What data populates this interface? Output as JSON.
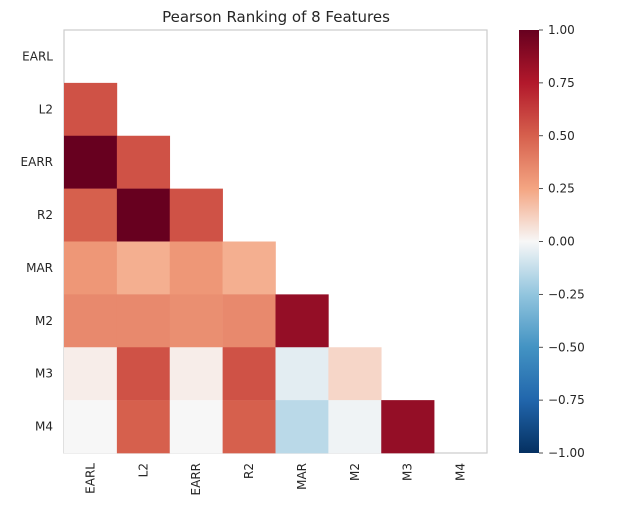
{
  "chart_data": {
    "type": "heatmap",
    "title": "Pearson Ranking of 8 Features",
    "features": [
      "EARL",
      "L2",
      "EARR",
      "R2",
      "MAR",
      "M2",
      "M3",
      "M4"
    ],
    "matrix": [
      [
        null,
        null,
        null,
        null,
        null,
        null,
        null,
        null
      ],
      [
        0.55,
        null,
        null,
        null,
        null,
        null,
        null,
        null
      ],
      [
        1.0,
        0.55,
        null,
        null,
        null,
        null,
        null,
        null
      ],
      [
        0.5,
        1.0,
        0.55,
        null,
        null,
        null,
        null,
        null
      ],
      [
        0.3,
        0.22,
        0.3,
        0.22,
        null,
        null,
        null,
        null
      ],
      [
        0.35,
        0.35,
        0.33,
        0.35,
        0.85,
        null,
        null,
        null
      ],
      [
        0.03,
        0.55,
        0.03,
        0.55,
        -0.05,
        0.1,
        null,
        null
      ],
      [
        0.0,
        0.5,
        0.0,
        0.5,
        -0.15,
        -0.02,
        0.85,
        null
      ]
    ],
    "colorbar": {
      "range": [
        -1.0,
        1.0
      ],
      "ticks": [
        "1.00",
        "0.75",
        "0.50",
        "0.25",
        "0.00",
        "−0.25",
        "−0.50",
        "−0.75",
        "−1.00"
      ],
      "colormap": "RdBu_r"
    },
    "grid": false
  }
}
